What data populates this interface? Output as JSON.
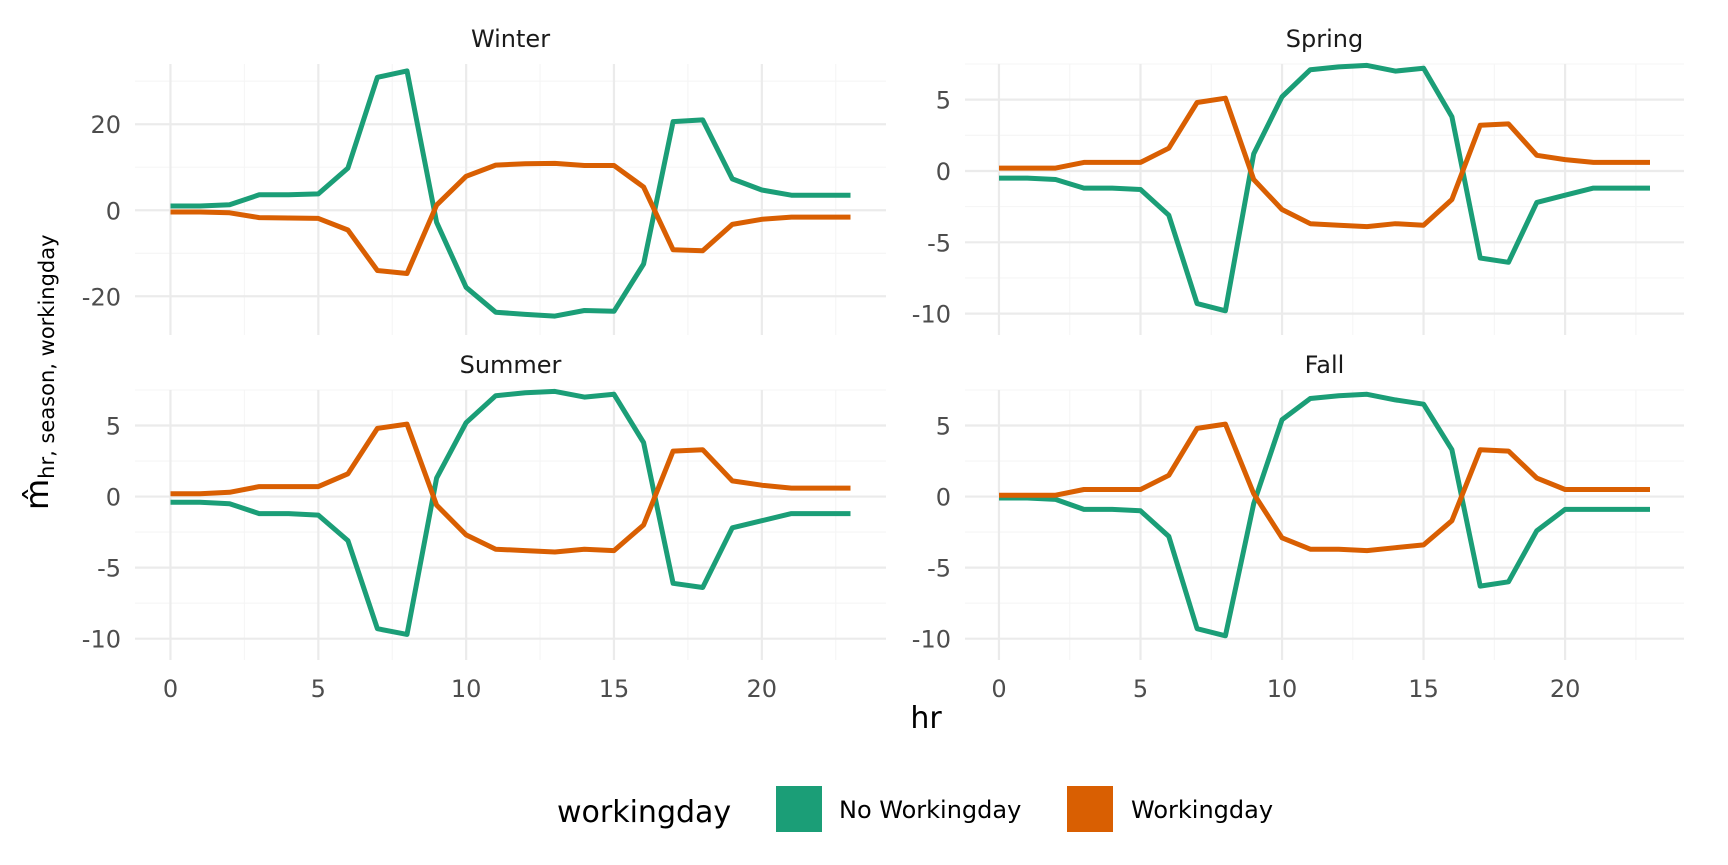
{
  "chart_data": {
    "type": "line",
    "facets": [
      "Winter",
      "Spring",
      "Summer",
      "Fall"
    ],
    "xlabel": "hr",
    "ylabel_main": "m̂",
    "ylabel_sub": "hr, season, workingday",
    "x": [
      0,
      1,
      2,
      3,
      4,
      5,
      6,
      7,
      8,
      9,
      10,
      11,
      12,
      13,
      14,
      15,
      16,
      17,
      18,
      19,
      20,
      21,
      22,
      23
    ],
    "xticks": [
      0,
      5,
      10,
      15,
      20
    ],
    "xlim": [
      -1.2,
      24.2
    ],
    "legend": {
      "title": "workingday",
      "position": "bottom",
      "entries": [
        {
          "name": "No Workingday",
          "color": "#1B9E77"
        },
        {
          "name": "Workingday",
          "color": "#D95F02"
        }
      ]
    },
    "panels": [
      {
        "title": "Winter",
        "ylim": [
          -29,
          34
        ],
        "yticks": [
          20,
          0,
          -20
        ],
        "ytick_labels": [
          "20",
          "0",
          "-20"
        ],
        "series": [
          {
            "name": "No Workingday",
            "values": [
              1.0,
              1.0,
              1.3,
              3.6,
              3.6,
              3.8,
              9.8,
              30.9,
              32.4,
              -2.8,
              -17.9,
              -23.7,
              -24.2,
              -24.6,
              -23.3,
              -23.5,
              -12.5,
              20.6,
              21.0,
              7.3,
              4.7,
              3.5,
              3.5,
              3.5
            ]
          },
          {
            "name": "Workingday",
            "values": [
              -0.4,
              -0.4,
              -0.6,
              -1.7,
              -1.8,
              -1.9,
              -4.6,
              -14.0,
              -14.7,
              1.2,
              7.9,
              10.5,
              10.8,
              10.9,
              10.4,
              10.4,
              5.4,
              -9.2,
              -9.4,
              -3.3,
              -2.1,
              -1.6,
              -1.6,
              -1.6
            ]
          }
        ]
      },
      {
        "title": "Spring",
        "ylim": [
          -11.5,
          7.5
        ],
        "yticks": [
          5,
          0,
          -5,
          -10
        ],
        "ytick_labels": [
          "5",
          "0",
          "-5",
          "-10"
        ],
        "series": [
          {
            "name": "No Workingday",
            "values": [
              -0.5,
              -0.5,
              -0.6,
              -1.2,
              -1.2,
              -1.3,
              -3.1,
              -9.3,
              -9.8,
              1.2,
              5.2,
              7.1,
              7.3,
              7.4,
              7.0,
              7.2,
              3.8,
              -6.1,
              -6.4,
              -2.2,
              -1.7,
              -1.2,
              -1.2,
              -1.2
            ]
          },
          {
            "name": "Workingday",
            "values": [
              0.2,
              0.2,
              0.2,
              0.6,
              0.6,
              0.6,
              1.6,
              4.8,
              5.1,
              -0.6,
              -2.7,
              -3.7,
              -3.8,
              -3.9,
              -3.7,
              -3.8,
              -2.0,
              3.2,
              3.3,
              1.1,
              0.8,
              0.6,
              0.6,
              0.6
            ]
          }
        ]
      },
      {
        "title": "Summer",
        "ylim": [
          -11.5,
          7.5
        ],
        "yticks": [
          5,
          0,
          -5,
          -10
        ],
        "ytick_labels": [
          "5",
          "0",
          "-5",
          "-10"
        ],
        "series": [
          {
            "name": "No Workingday",
            "values": [
              -0.4,
              -0.4,
              -0.5,
              -1.2,
              -1.2,
              -1.3,
              -3.1,
              -9.3,
              -9.7,
              1.3,
              5.2,
              7.1,
              7.3,
              7.4,
              7.0,
              7.2,
              3.8,
              -6.1,
              -6.4,
              -2.2,
              -1.7,
              -1.2,
              -1.2,
              -1.2
            ]
          },
          {
            "name": "Workingday",
            "values": [
              0.2,
              0.2,
              0.3,
              0.7,
              0.7,
              0.7,
              1.6,
              4.8,
              5.1,
              -0.6,
              -2.7,
              -3.7,
              -3.8,
              -3.9,
              -3.7,
              -3.8,
              -2.0,
              3.2,
              3.3,
              1.1,
              0.8,
              0.6,
              0.6,
              0.6
            ]
          }
        ]
      },
      {
        "title": "Fall",
        "ylim": [
          -11.5,
          7.5
        ],
        "yticks": [
          5,
          0,
          -5,
          -10
        ],
        "ytick_labels": [
          "5",
          "0",
          "-5",
          "-10"
        ],
        "series": [
          {
            "name": "No Workingday",
            "values": [
              -0.1,
              -0.1,
              -0.2,
              -0.9,
              -0.9,
              -1.0,
              -2.8,
              -9.3,
              -9.8,
              -0.5,
              5.4,
              6.9,
              7.1,
              7.2,
              6.8,
              6.5,
              3.3,
              -6.3,
              -6.0,
              -2.4,
              -0.9,
              -0.9,
              -0.9,
              -0.9
            ]
          },
          {
            "name": "Workingday",
            "values": [
              0.1,
              0.1,
              0.1,
              0.5,
              0.5,
              0.5,
              1.5,
              4.8,
              5.1,
              0.2,
              -2.9,
              -3.7,
              -3.7,
              -3.8,
              -3.6,
              -3.4,
              -1.7,
              3.3,
              3.2,
              1.3,
              0.5,
              0.5,
              0.5,
              0.5
            ]
          }
        ]
      }
    ]
  }
}
